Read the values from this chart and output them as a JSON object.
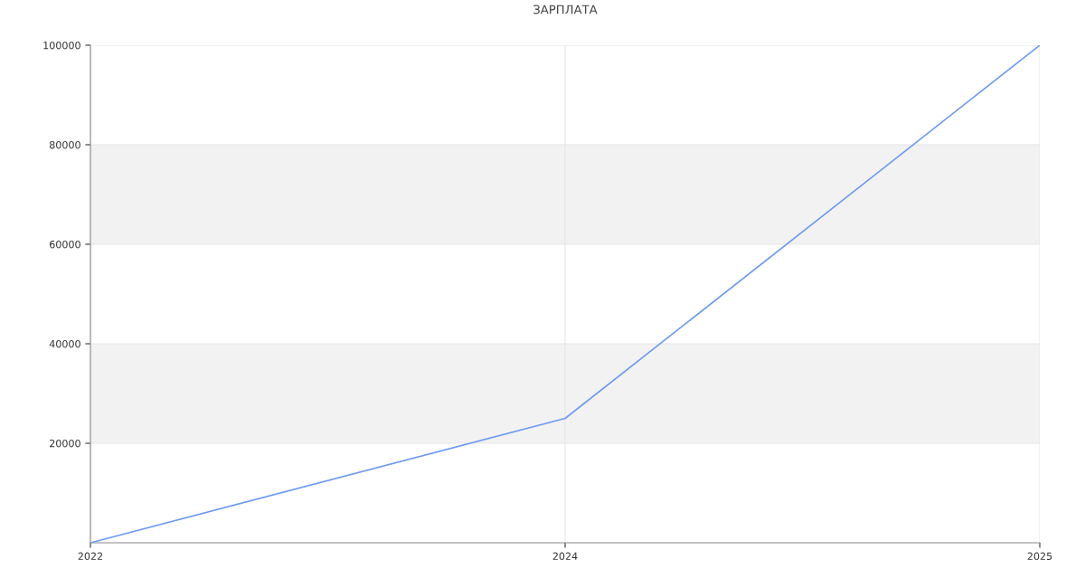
{
  "chart_data": {
    "type": "line",
    "title": "ЗАРПЛАТА",
    "categories": [
      "2022",
      "2024",
      "2025"
    ],
    "series": [
      {
        "color": "#6f9af0",
        "values": [
          0,
          25000,
          100000
        ]
      }
    ],
    "ylim": [
      0,
      100000
    ],
    "yticks": [
      20000,
      40000,
      60000,
      80000,
      100000
    ],
    "bands": [
      {
        "axis": "y",
        "from": 20000,
        "to": 40000,
        "color": "#f2f2f2"
      },
      {
        "axis": "y",
        "from": 60000,
        "to": 80000,
        "color": "#f2f2f2"
      }
    ],
    "grid": true,
    "marker": "none",
    "line_style": "solid"
  }
}
